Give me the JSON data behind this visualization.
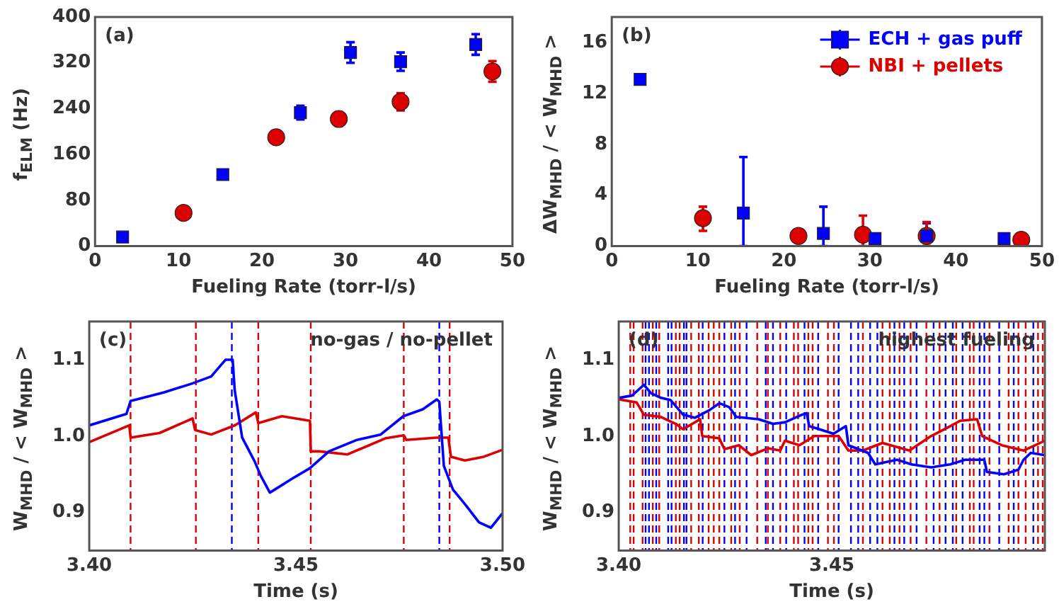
{
  "chart_data": [
    {
      "type": "scatter",
      "xlabel": "Fueling Rate (torr-l/s)",
      "ylabel": "f$_{ELM}$ (Hz)",
      "annotations": [
        "(a)"
      ],
      "xlim": [
        0,
        50
      ],
      "ylim": [
        0,
        400
      ],
      "xticks": [
        0,
        10,
        20,
        30,
        40,
        50
      ],
      "yticks": [
        0,
        80,
        160,
        240,
        320,
        400
      ],
      "series": [
        {
          "color": "#0000ff",
          "marker": "square",
          "x": [
            3.3,
            15.3,
            24.6,
            30.6,
            36.6,
            45.6
          ],
          "values": [
            16,
            125,
            233,
            338,
            322,
            352
          ],
          "errors": [
            null,
            null,
            12,
            18,
            16,
            18
          ]
        },
        {
          "color": "#dd0000",
          "marker": "circle",
          "x": [
            10.6,
            21.7,
            29.2,
            36.6,
            47.6
          ],
          "values": [
            58,
            190,
            222,
            252,
            305
          ],
          "errors": [
            null,
            null,
            12,
            15,
            18
          ]
        }
      ]
    },
    {
      "type": "scatter",
      "xlabel": "Fueling Rate (torr-l/s)",
      "ylabel": "ΔW$_{MHD}$ / < W$_{MHD}$ >",
      "annotations": [
        "(b)"
      ],
      "xlim": [
        0,
        50
      ],
      "ylim": [
        0,
        18
      ],
      "xticks": [
        0,
        10,
        20,
        30,
        40,
        50
      ],
      "yticks": [
        0,
        4,
        8,
        12,
        16
      ],
      "legend": "top right",
      "series": [
        {
          "name": "ECH + gas puff",
          "color": "#0000ff",
          "marker": "square",
          "x": [
            3.3,
            15.3,
            24.6,
            30.6,
            36.6,
            45.6
          ],
          "values": [
            13.1,
            2.6,
            1.0,
            0.6,
            0.8,
            0.6
          ],
          "errors": [
            null,
            [
              0,
              7.0
            ],
            [
              0,
              3.1
            ],
            null,
            [
              0,
              1.8
            ],
            null
          ]
        },
        {
          "name": "NBI + pellets",
          "color": "#dd0000",
          "marker": "circle",
          "x": [
            10.6,
            21.7,
            29.2,
            36.6,
            47.6
          ],
          "values": [
            2.2,
            0.8,
            0.9,
            0.8,
            0.5
          ],
          "errors": [
            [
              1.2,
              3.1
            ],
            null,
            [
              0,
              2.4
            ],
            [
              0,
              1.9
            ],
            null
          ]
        }
      ]
    },
    {
      "type": "line",
      "xlabel": "Time (s)",
      "ylabel": "W$_{MHD}$ / < W$_{MHD}$ >",
      "annotations": [
        "(c)",
        "no-gas / no-pellet"
      ],
      "xlim": [
        3.4,
        3.5
      ],
      "ylim": [
        0.85,
        1.15
      ],
      "xticks": [
        {
          "value": 3.4,
          "label": "3.40"
        },
        {
          "value": 3.45,
          "label": "3.45"
        },
        {
          "value": 3.5,
          "label": "3.50"
        }
      ],
      "yticks": [
        0.9,
        {
          "value": 1,
          "label": "1.0"
        },
        1.1
      ],
      "marker": "none",
      "line_style": "solid",
      "series": [
        {
          "color": "#0000ff",
          "x": [
            3.4,
            3.409,
            3.41,
            3.418,
            3.425,
            3.4295,
            3.433,
            3.4347,
            3.4352,
            3.437,
            3.44,
            3.4415,
            3.4437,
            3.4455,
            3.449,
            3.4534,
            3.458,
            3.4648,
            3.4705,
            3.476,
            3.4807,
            3.4841,
            3.4847,
            3.4858,
            3.488,
            3.4909,
            3.4943,
            3.4972,
            3.5
          ],
          "values": [
            1.014,
            1.029,
            1.046,
            1.057,
            1.069,
            1.078,
            1.1,
            1.1,
            1.06,
            0.998,
            0.967,
            0.948,
            0.926,
            0.932,
            0.944,
            0.958,
            0.98,
            0.995,
            1.002,
            1.026,
            1.035,
            1.048,
            1.045,
            0.961,
            0.93,
            0.911,
            0.887,
            0.88,
            0.899
          ]
        },
        {
          "color": "#dd0000",
          "x": [
            3.4,
            3.4097,
            3.41,
            3.417,
            3.425,
            3.4256,
            3.4295,
            3.4352,
            3.4403,
            3.4409,
            3.4466,
            3.4534,
            3.4536,
            3.4557,
            3.4625,
            3.4716,
            3.4761,
            3.4767,
            3.4841,
            3.4869,
            3.4875,
            3.4909,
            3.4955,
            3.5
          ],
          "values": [
            0.992,
            1.014,
            0.998,
            1.004,
            1.023,
            1.008,
            1.002,
            1.014,
            1.031,
            1.017,
            1.026,
            1.02,
            0.98,
            0.98,
            0.976,
            0.997,
            1.001,
            0.995,
            0.998,
            0.998,
            0.973,
            0.968,
            0.973,
            0.982
          ]
        }
      ],
      "ref_lines": [
        {
          "axis": "x",
          "value": 3.41,
          "color": "#dd0000",
          "line_style": "dashed"
        },
        {
          "axis": "x",
          "value": 3.4258,
          "color": "#dd0000",
          "line_style": "dashed"
        },
        {
          "axis": "x",
          "value": 3.4345,
          "color": "#0000ff",
          "line_style": "dashed"
        },
        {
          "axis": "x",
          "value": 3.4409,
          "color": "#dd0000",
          "line_style": "dashed"
        },
        {
          "axis": "x",
          "value": 3.4536,
          "color": "#dd0000",
          "line_style": "dashed"
        },
        {
          "axis": "x",
          "value": 3.4761,
          "color": "#dd0000",
          "line_style": "dashed"
        },
        {
          "axis": "x",
          "value": 3.4847,
          "color": "#0000ff",
          "line_style": "dashed"
        },
        {
          "axis": "x",
          "value": 3.4872,
          "color": "#dd0000",
          "line_style": "dashed"
        }
      ]
    },
    {
      "type": "line",
      "xlabel": "Time (s)",
      "ylabel": "W$_{MHD}$ / < W$_{MHD}$ >",
      "annotations": [
        "(d)",
        "highest fueling"
      ],
      "xlim": [
        3.4,
        3.5
      ],
      "ylim": [
        0.85,
        1.15
      ],
      "xticks": [
        {
          "value": 3.4,
          "label": "3.40"
        },
        {
          "value": 3.45,
          "label": "3.45"
        }
      ],
      "yticks": [
        0.9,
        {
          "value": 1,
          "label": "1.0"
        },
        1.1
      ],
      "marker": "none",
      "line_style": "solid",
      "series": [
        {
          "color": "#0000ff",
          "x": [
            3.4,
            3.4031,
            3.4059,
            3.4076,
            3.4099,
            3.4122,
            3.4151,
            3.4179,
            3.4213,
            3.4236,
            3.4259,
            3.4276,
            3.4328,
            3.4362,
            3.439,
            3.443,
            3.4441,
            3.4447,
            3.447,
            3.4504,
            3.4533,
            3.4539,
            3.4585,
            3.4602,
            3.4653,
            3.4687,
            3.4733,
            3.4778,
            3.4813,
            3.4858,
            3.4864,
            3.4904,
            3.4938,
            3.495,
            3.4967,
            3.5
          ],
          "values": [
            1.05,
            1.053,
            1.067,
            1.056,
            1.05,
            1.047,
            1.028,
            1.024,
            1.034,
            1.043,
            1.038,
            1.025,
            1.022,
            1.016,
            1.018,
            1.028,
            1.03,
            1.013,
            1.009,
            1.003,
            1.013,
            0.988,
            0.978,
            0.963,
            0.969,
            0.963,
            0.959,
            0.963,
            0.969,
            0.969,
            0.953,
            0.95,
            0.956,
            0.969,
            0.978,
            0.975
          ]
        },
        {
          "color": "#dd0000",
          "x": [
            3.4,
            3.4042,
            3.4059,
            3.4099,
            3.4134,
            3.4151,
            3.4191,
            3.4196,
            3.4236,
            3.4248,
            3.4282,
            3.4311,
            3.435,
            3.4379,
            3.439,
            3.4424,
            3.4459,
            3.4516,
            3.4539,
            3.4573,
            3.4619,
            3.4682,
            3.4733,
            3.4778,
            3.4801,
            3.4841,
            3.4853,
            3.4899,
            3.495,
            3.5
          ],
          "values": [
            1.048,
            1.044,
            1.028,
            1.025,
            1.016,
            1.009,
            1.022,
            1.0,
            0.997,
            0.983,
            0.988,
            0.975,
            0.984,
            0.981,
            0.994,
            0.988,
            1.0,
            1.0,
            0.981,
            0.981,
            0.991,
            0.981,
            1.0,
            1.013,
            1.02,
            1.022,
            1.0,
            0.988,
            0.981,
            0.994
          ]
        }
      ],
      "ref_lines": [
        {
          "axis": "x",
          "value": 3.4027,
          "color": "#dd0000",
          "line_style": "dashed"
        },
        {
          "axis": "x",
          "value": 3.4035,
          "color": "#dd0000",
          "line_style": "dashed"
        },
        {
          "axis": "x",
          "value": 3.4056,
          "color": "#dd0000",
          "line_style": "dashed"
        },
        {
          "axis": "x",
          "value": 3.408,
          "color": "#dd0000",
          "line_style": "dashed"
        },
        {
          "axis": "x",
          "value": 3.4095,
          "color": "#dd0000",
          "line_style": "dashed"
        },
        {
          "axis": "x",
          "value": 3.4134,
          "color": "#dd0000",
          "line_style": "dashed"
        },
        {
          "axis": "x",
          "value": 3.4143,
          "color": "#dd0000",
          "line_style": "dashed"
        },
        {
          "axis": "x",
          "value": 3.417,
          "color": "#dd0000",
          "line_style": "dashed"
        },
        {
          "axis": "x",
          "value": 3.4188,
          "color": "#dd0000",
          "line_style": "dashed"
        },
        {
          "axis": "x",
          "value": 3.4211,
          "color": "#dd0000",
          "line_style": "dashed"
        },
        {
          "axis": "x",
          "value": 3.4223,
          "color": "#dd0000",
          "line_style": "dashed"
        },
        {
          "axis": "x",
          "value": 3.4236,
          "color": "#dd0000",
          "line_style": "dashed"
        },
        {
          "axis": "x",
          "value": 3.4264,
          "color": "#dd0000",
          "line_style": "dashed"
        },
        {
          "axis": "x",
          "value": 3.4284,
          "color": "#dd0000",
          "line_style": "dashed"
        },
        {
          "axis": "x",
          "value": 3.4325,
          "color": "#dd0000",
          "line_style": "dashed"
        },
        {
          "axis": "x",
          "value": 3.435,
          "color": "#dd0000",
          "line_style": "dashed"
        },
        {
          "axis": "x",
          "value": 3.4379,
          "color": "#dd0000",
          "line_style": "dashed"
        },
        {
          "axis": "x",
          "value": 3.4411,
          "color": "#dd0000",
          "line_style": "dashed"
        },
        {
          "axis": "x",
          "value": 3.4421,
          "color": "#dd0000",
          "line_style": "dashed"
        },
        {
          "axis": "x",
          "value": 3.4445,
          "color": "#dd0000",
          "line_style": "dashed"
        },
        {
          "axis": "x",
          "value": 3.4455,
          "color": "#dd0000",
          "line_style": "dashed"
        },
        {
          "axis": "x",
          "value": 3.4491,
          "color": "#dd0000",
          "line_style": "dashed"
        },
        {
          "axis": "x",
          "value": 3.4505,
          "color": "#dd0000",
          "line_style": "dashed"
        },
        {
          "axis": "x",
          "value": 3.4573,
          "color": "#dd0000",
          "line_style": "dashed"
        },
        {
          "axis": "x",
          "value": 3.4619,
          "color": "#dd0000",
          "line_style": "dashed"
        },
        {
          "axis": "x",
          "value": 3.4636,
          "color": "#dd0000",
          "line_style": "dashed"
        },
        {
          "axis": "x",
          "value": 3.4659,
          "color": "#dd0000",
          "line_style": "dashed"
        },
        {
          "axis": "x",
          "value": 3.4685,
          "color": "#dd0000",
          "line_style": "dashed"
        },
        {
          "axis": "x",
          "value": 3.4722,
          "color": "#dd0000",
          "line_style": "dashed"
        },
        {
          "axis": "x",
          "value": 3.4753,
          "color": "#dd0000",
          "line_style": "dashed"
        },
        {
          "axis": "x",
          "value": 3.4792,
          "color": "#dd0000",
          "line_style": "dashed"
        },
        {
          "axis": "x",
          "value": 3.4824,
          "color": "#dd0000",
          "line_style": "dashed"
        },
        {
          "axis": "x",
          "value": 3.4833,
          "color": "#dd0000",
          "line_style": "dashed"
        },
        {
          "axis": "x",
          "value": 3.487,
          "color": "#dd0000",
          "line_style": "dashed"
        },
        {
          "axis": "x",
          "value": 3.4915,
          "color": "#dd0000",
          "line_style": "dashed"
        },
        {
          "axis": "x",
          "value": 3.4938,
          "color": "#dd0000",
          "line_style": "dashed"
        },
        {
          "axis": "x",
          "value": 3.4955,
          "color": "#dd0000",
          "line_style": "dashed"
        },
        {
          "axis": "x",
          "value": 3.4984,
          "color": "#dd0000",
          "line_style": "dashed"
        },
        {
          "axis": "x",
          "value": 3.4995,
          "color": "#dd0000",
          "line_style": "dashed"
        },
        {
          "axis": "x",
          "value": 3.4063,
          "color": "#0000ff",
          "line_style": "dashed"
        },
        {
          "axis": "x",
          "value": 3.4071,
          "color": "#0000ff",
          "line_style": "dashed"
        },
        {
          "axis": "x",
          "value": 3.4088,
          "color": "#0000ff",
          "line_style": "dashed"
        },
        {
          "axis": "x",
          "value": 3.4116,
          "color": "#0000ff",
          "line_style": "dashed"
        },
        {
          "axis": "x",
          "value": 3.4124,
          "color": "#0000ff",
          "line_style": "dashed"
        },
        {
          "axis": "x",
          "value": 3.4153,
          "color": "#0000ff",
          "line_style": "dashed"
        },
        {
          "axis": "x",
          "value": 3.4159,
          "color": "#0000ff",
          "line_style": "dashed"
        },
        {
          "axis": "x",
          "value": 3.4197,
          "color": "#0000ff",
          "line_style": "dashed"
        },
        {
          "axis": "x",
          "value": 3.4248,
          "color": "#0000ff",
          "line_style": "dashed"
        },
        {
          "axis": "x",
          "value": 3.4273,
          "color": "#0000ff",
          "line_style": "dashed"
        },
        {
          "axis": "x",
          "value": 3.43,
          "color": "#0000ff",
          "line_style": "dashed"
        },
        {
          "axis": "x",
          "value": 3.4345,
          "color": "#0000ff",
          "line_style": "dashed"
        },
        {
          "axis": "x",
          "value": 3.4362,
          "color": "#0000ff",
          "line_style": "dashed"
        },
        {
          "axis": "x",
          "value": 3.4393,
          "color": "#0000ff",
          "line_style": "dashed"
        },
        {
          "axis": "x",
          "value": 3.4436,
          "color": "#0000ff",
          "line_style": "dashed"
        },
        {
          "axis": "x",
          "value": 3.4468,
          "color": "#0000ff",
          "line_style": "dashed"
        },
        {
          "axis": "x",
          "value": 3.4516,
          "color": "#0000ff",
          "line_style": "dashed"
        },
        {
          "axis": "x",
          "value": 3.4545,
          "color": "#0000ff",
          "line_style": "dashed"
        },
        {
          "axis": "x",
          "value": 3.4562,
          "color": "#0000ff",
          "line_style": "dashed"
        },
        {
          "axis": "x",
          "value": 3.459,
          "color": "#0000ff",
          "line_style": "dashed"
        },
        {
          "axis": "x",
          "value": 3.4607,
          "color": "#0000ff",
          "line_style": "dashed"
        },
        {
          "axis": "x",
          "value": 3.4647,
          "color": "#0000ff",
          "line_style": "dashed"
        },
        {
          "axis": "x",
          "value": 3.467,
          "color": "#0000ff",
          "line_style": "dashed"
        },
        {
          "axis": "x",
          "value": 3.4699,
          "color": "#0000ff",
          "line_style": "dashed"
        },
        {
          "axis": "x",
          "value": 3.4739,
          "color": "#0000ff",
          "line_style": "dashed"
        },
        {
          "axis": "x",
          "value": 3.4767,
          "color": "#0000ff",
          "line_style": "dashed"
        },
        {
          "axis": "x",
          "value": 3.4784,
          "color": "#0000ff",
          "line_style": "dashed"
        },
        {
          "axis": "x",
          "value": 3.4807,
          "color": "#0000ff",
          "line_style": "dashed"
        },
        {
          "axis": "x",
          "value": 3.4847,
          "color": "#0000ff",
          "line_style": "dashed"
        },
        {
          "axis": "x",
          "value": 3.4858,
          "color": "#0000ff",
          "line_style": "dashed"
        },
        {
          "axis": "x",
          "value": 3.4893,
          "color": "#0000ff",
          "line_style": "dashed"
        },
        {
          "axis": "x",
          "value": 3.4927,
          "color": "#0000ff",
          "line_style": "dashed"
        },
        {
          "axis": "x",
          "value": 3.4973,
          "color": "#0000ff",
          "line_style": "dashed"
        }
      ]
    }
  ]
}
